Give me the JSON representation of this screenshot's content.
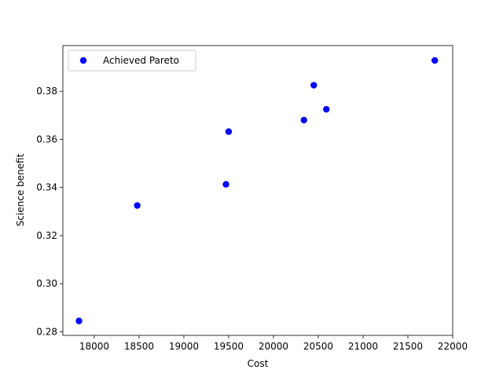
{
  "chart_data": {
    "type": "scatter",
    "xlabel": "Cost",
    "ylabel": "Science benefit",
    "xlim": [
      17650,
      22000
    ],
    "ylim": [
      0.2785,
      0.399
    ],
    "x_ticks": [
      18000,
      18500,
      19000,
      19500,
      20000,
      20500,
      21000,
      21500,
      22000
    ],
    "y_ticks": [
      0.28,
      0.3,
      0.32,
      0.34,
      0.36,
      0.38
    ],
    "y_tick_labels": [
      "0.28",
      "0.30",
      "0.32",
      "0.34",
      "0.36",
      "0.38"
    ],
    "grid": false,
    "legend_position": "top-left",
    "series": [
      {
        "name": "Achieved Pareto",
        "color": "#0000ff",
        "points": [
          {
            "x": 17830,
            "y": 0.2845
          },
          {
            "x": 18480,
            "y": 0.3325
          },
          {
            "x": 19470,
            "y": 0.3413
          },
          {
            "x": 19500,
            "y": 0.3632
          },
          {
            "x": 20340,
            "y": 0.368
          },
          {
            "x": 20450,
            "y": 0.3825
          },
          {
            "x": 20590,
            "y": 0.3725
          },
          {
            "x": 21800,
            "y": 0.3928
          }
        ]
      }
    ]
  }
}
